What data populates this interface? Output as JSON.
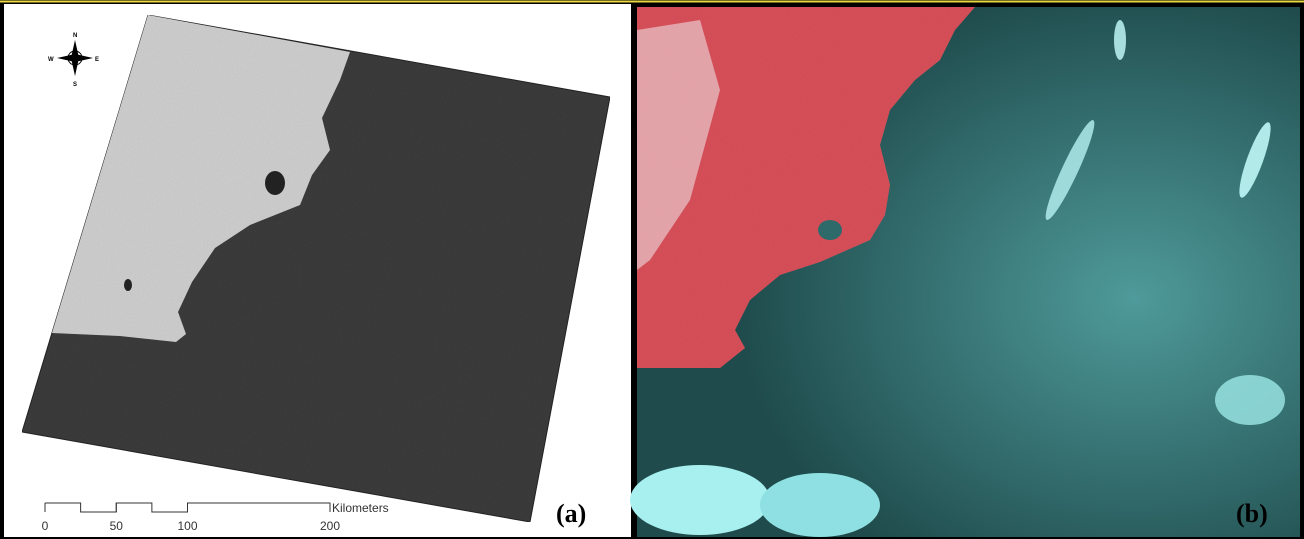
{
  "panel_a": {
    "label": "(a)",
    "compass": {
      "north": "N",
      "east": "E",
      "south": "S",
      "west": "W"
    },
    "scale_bar": {
      "unit": "Kilometers",
      "ticks": [
        0,
        50,
        100,
        200
      ]
    }
  },
  "panel_b": {
    "label": "(b)"
  }
}
